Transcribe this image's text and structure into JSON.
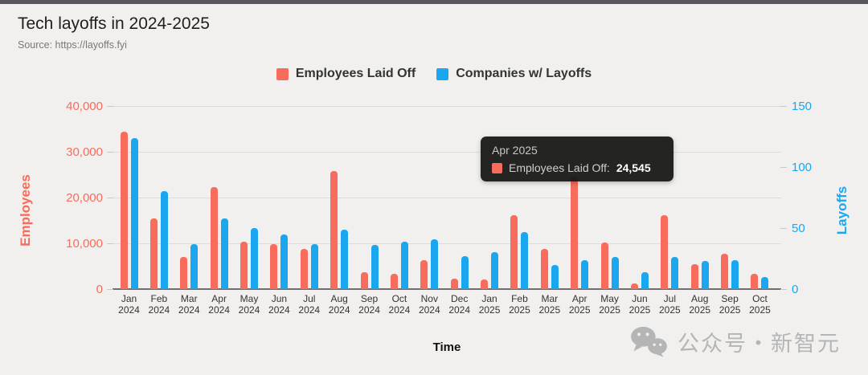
{
  "header": {
    "title": "Tech layoffs in 2024-2025",
    "subtitle": "Source: https://layoffs.fyi"
  },
  "legend": {
    "items": [
      {
        "label": "Employees Laid Off",
        "color": "#f86c5d"
      },
      {
        "label": "Companies w/ Layoffs",
        "color": "#1aa7f0"
      }
    ]
  },
  "tooltip": {
    "title": "Apr 2025",
    "series_label": "Employees Laid Off:",
    "value": "24,545",
    "swatch_color": "#f86c5d",
    "background": "#1c1c1c"
  },
  "watermark": {
    "icon": "wechat-icon",
    "text": "公众号・新智元",
    "color": "#b5b5b5"
  },
  "chart_data": {
    "type": "bar",
    "title": "Tech layoffs in 2024-2025",
    "categories": [
      "Jan 2024",
      "Feb 2024",
      "Mar 2024",
      "Apr 2024",
      "May 2024",
      "Jun 2024",
      "Jul 2024",
      "Aug 2024",
      "Sep 2024",
      "Oct 2024",
      "Nov 2024",
      "Dec 2024",
      "Jan 2025",
      "Feb 2025",
      "Mar 2025",
      "Apr 2025",
      "May 2025",
      "Jun 2025",
      "Jul 2025",
      "Aug 2025",
      "Sep 2025",
      "Oct 2025"
    ],
    "series": [
      {
        "name": "Employees Laid Off",
        "axis": "left",
        "color": "#f86c5d",
        "values": [
          34400,
          15500,
          7000,
          22300,
          10400,
          9900,
          8800,
          25800,
          3600,
          3300,
          6300,
          2200,
          2100,
          16100,
          8800,
          24545,
          10200,
          1200,
          16200,
          5400,
          7700,
          3300
        ]
      },
      {
        "name": "Companies w/ Layoffs",
        "axis": "right",
        "color": "#1aa7f0",
        "values": [
          124,
          80,
          37,
          58,
          50,
          45,
          37,
          49,
          36,
          39,
          41,
          27,
          30,
          47,
          20,
          24,
          26,
          14,
          26,
          23,
          24,
          10
        ]
      }
    ],
    "left_axis": {
      "title": "Employees",
      "min": 0,
      "max": 40000,
      "ticks": [
        0,
        10000,
        20000,
        30000,
        40000
      ],
      "tick_labels": [
        "0",
        "10,000",
        "20,000",
        "30,000",
        "40,000"
      ],
      "color": "#f86c5d"
    },
    "right_axis": {
      "title": "Layoffs",
      "min": 0,
      "max": 150,
      "ticks": [
        0,
        50,
        100,
        150
      ],
      "tick_labels": [
        "0",
        "50",
        "100",
        "150"
      ],
      "color": "#1aa7f0"
    },
    "x_axis": {
      "title": "Time"
    },
    "grid": true,
    "legend_position": "top"
  }
}
